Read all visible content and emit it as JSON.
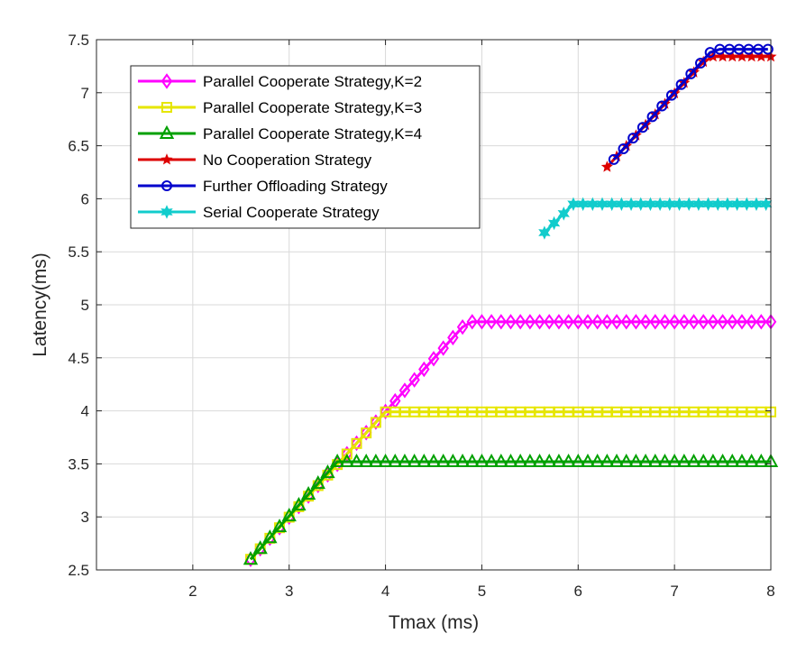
{
  "chart_data": {
    "type": "line",
    "title": "",
    "xlabel": "Tmax (ms)",
    "ylabel": "Latency(ms)",
    "xlim": [
      1,
      8
    ],
    "ylim": [
      2.5,
      7.5
    ],
    "xticks": [
      2,
      3,
      4,
      5,
      6,
      7,
      8
    ],
    "yticks": [
      2.5,
      3,
      3.5,
      4,
      4.5,
      5,
      5.5,
      6,
      6.5,
      7,
      7.5
    ],
    "xtick_labels": [
      "2",
      "3",
      "4",
      "5",
      "6",
      "7",
      "8"
    ],
    "ytick_labels": [
      "2.5",
      "3",
      "3.5",
      "4",
      "4.5",
      "5",
      "5.5",
      "6",
      "6.5",
      "7",
      "7.5"
    ],
    "grid": true,
    "legend_position": "top-left",
    "series": [
      {
        "name": "Parallel Cooperate Strategy,K=2",
        "color": "#ff00ff",
        "marker": "diamond",
        "x_start": 2.6,
        "x_end": 8.0,
        "step": 0.1,
        "ramp_end": 4.85,
        "ramp_from": 2.6,
        "y_from": 2.6,
        "plateau": 4.84
      },
      {
        "name": "Parallel Cooperate Strategy,K=3",
        "color": "#e6e600",
        "marker": "square",
        "x_start": 2.6,
        "x_end": 8.0,
        "step": 0.1,
        "ramp_end": 4.0,
        "ramp_from": 2.6,
        "y_from": 2.6,
        "plateau": 3.99
      },
      {
        "name": "Parallel Cooperate Strategy,K=4",
        "color": "#00a000",
        "marker": "triangle",
        "x_start": 2.6,
        "x_end": 8.0,
        "step": 0.1,
        "ramp_end": 3.5,
        "ramp_from": 2.6,
        "y_from": 2.6,
        "plateau": 3.52
      },
      {
        "name": "No Cooperation Strategy",
        "color": "#dd0000",
        "marker": "star",
        "x_start": 6.3,
        "x_end": 8.0,
        "step": 0.1,
        "ramp_end": 7.35,
        "ramp_from": 6.3,
        "y_from": 6.3,
        "plateau": 7.34
      },
      {
        "name": "Further Offloading Strategy",
        "color": "#0000cc",
        "marker": "circle",
        "x_start": 6.37,
        "x_end": 8.0,
        "step": 0.1,
        "ramp_end": 7.4,
        "ramp_from": 6.37,
        "y_from": 6.37,
        "plateau": 7.41
      },
      {
        "name": "Serial Cooperate Strategy",
        "color": "#11cccc",
        "marker": "hexagram",
        "x_start": 5.65,
        "x_end": 8.0,
        "step": 0.1,
        "ramp_end": 5.95,
        "ramp_from": 5.65,
        "y_from": 5.68,
        "plateau": 5.95
      }
    ]
  }
}
